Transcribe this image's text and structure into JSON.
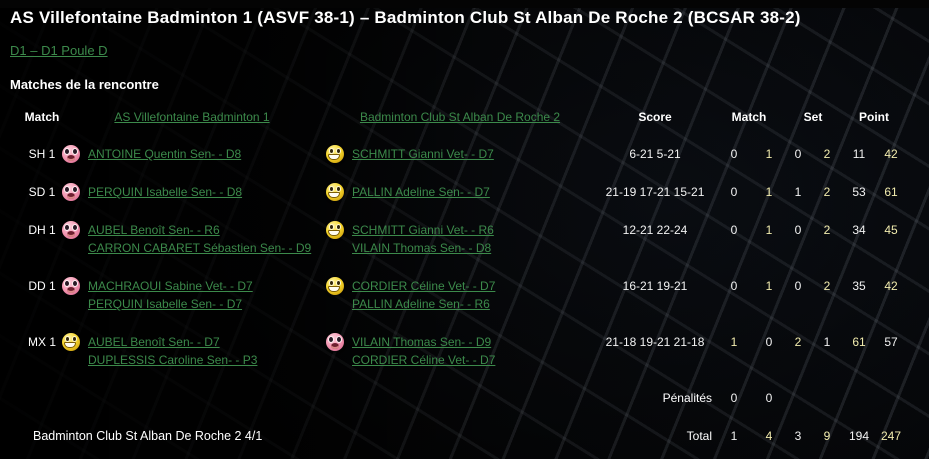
{
  "colors": {
    "background": "#040404",
    "link_green": "#3c8a4b",
    "text_white": "#ffffff",
    "winner_yellow": "#f2ecae"
  },
  "header": {
    "title": "AS Villefontaine Badminton 1 (ASVF 38-1) – Badminton Club St Alban De Roche 2 (BCSAR 38-2)",
    "division_link": "D1 – D1 Poule D",
    "section_title": "Matches de la rencontre"
  },
  "table": {
    "columns": {
      "match": "Match",
      "home_team": "AS Villefontaine Badminton 1",
      "away_team": "Badminton Club St Alban De Roche 2",
      "score": "Score",
      "match_count": "Match",
      "set": "Set",
      "point": "Point"
    },
    "rows": [
      {
        "match": "SH 1",
        "home_mood": "sad",
        "home_mood_class": "face face-sad",
        "home_players": [
          "ANTOINE Quentin Sen- - D8"
        ],
        "away_mood": "happy",
        "away_mood_class": "face face-happy",
        "away_players": [
          "SCHMITT Gianni Vet- - D7"
        ],
        "score": "6-21 5-21",
        "home_match": "0",
        "away_match": "1",
        "home_set": "0",
        "away_set": "2",
        "home_point": "11",
        "away_point": "42",
        "winner": "away"
      },
      {
        "match": "SD 1",
        "home_mood": "sad",
        "home_mood_class": "face face-sad",
        "home_players": [
          "PERQUIN Isabelle Sen- - D8"
        ],
        "away_mood": "happy",
        "away_mood_class": "face face-happy",
        "away_players": [
          "PALLIN Adeline Sen- - D7"
        ],
        "score": "21-19 17-21 15-21",
        "home_match": "0",
        "away_match": "1",
        "home_set": "1",
        "away_set": "2",
        "home_point": "53",
        "away_point": "61",
        "winner": "away"
      },
      {
        "match": "DH 1",
        "home_mood": "sad",
        "home_mood_class": "face face-sad",
        "home_players": [
          "AUBEL Benoît Sen- - R6",
          "CARRON CABARET Sébastien Sen- - D9"
        ],
        "away_mood": "happy",
        "away_mood_class": "face face-happy",
        "away_players": [
          "SCHMITT Gianni Vet- - R6",
          "VILAIN Thomas Sen- - D8"
        ],
        "score": "12-21 22-24",
        "home_match": "0",
        "away_match": "1",
        "home_set": "0",
        "away_set": "2",
        "home_point": "34",
        "away_point": "45",
        "winner": "away"
      },
      {
        "match": "DD 1",
        "home_mood": "sad",
        "home_mood_class": "face face-sad",
        "home_players": [
          "MACHRAOUI Sabine Vet- - D7",
          "PERQUIN Isabelle Sen- - D7"
        ],
        "away_mood": "happy",
        "away_mood_class": "face face-happy",
        "away_players": [
          "CORDIER Céline Vet- - D7",
          "PALLIN Adeline Sen- - R6"
        ],
        "score": "16-21 19-21",
        "home_match": "0",
        "away_match": "1",
        "home_set": "0",
        "away_set": "2",
        "home_point": "35",
        "away_point": "42",
        "winner": "away"
      },
      {
        "match": "MX 1",
        "home_mood": "happy",
        "home_mood_class": "face face-happy",
        "home_players": [
          "AUBEL Benoît Sen- - D7",
          "DUPLESSIS Caroline Sen- - P3"
        ],
        "away_mood": "sad",
        "away_mood_class": "face face-sad",
        "away_players": [
          "VILAIN Thomas Sen- - D9",
          "CORDIER Céline Vet- - D7"
        ],
        "score": "21-18 19-21 21-18",
        "home_match": "1",
        "away_match": "0",
        "home_set": "2",
        "away_set": "1",
        "home_point": "61",
        "away_point": "57",
        "winner": "home"
      }
    ],
    "penalties": {
      "label": "Pénalités",
      "home": "0",
      "away": "0"
    },
    "total": {
      "label": "Total",
      "home_match": "1",
      "away_match": "4",
      "home_set": "3",
      "away_set": "9",
      "home_point": "194",
      "away_point": "247"
    }
  },
  "footer": {
    "away_team_result": "Badminton Club St Alban De Roche 2 4/1"
  }
}
